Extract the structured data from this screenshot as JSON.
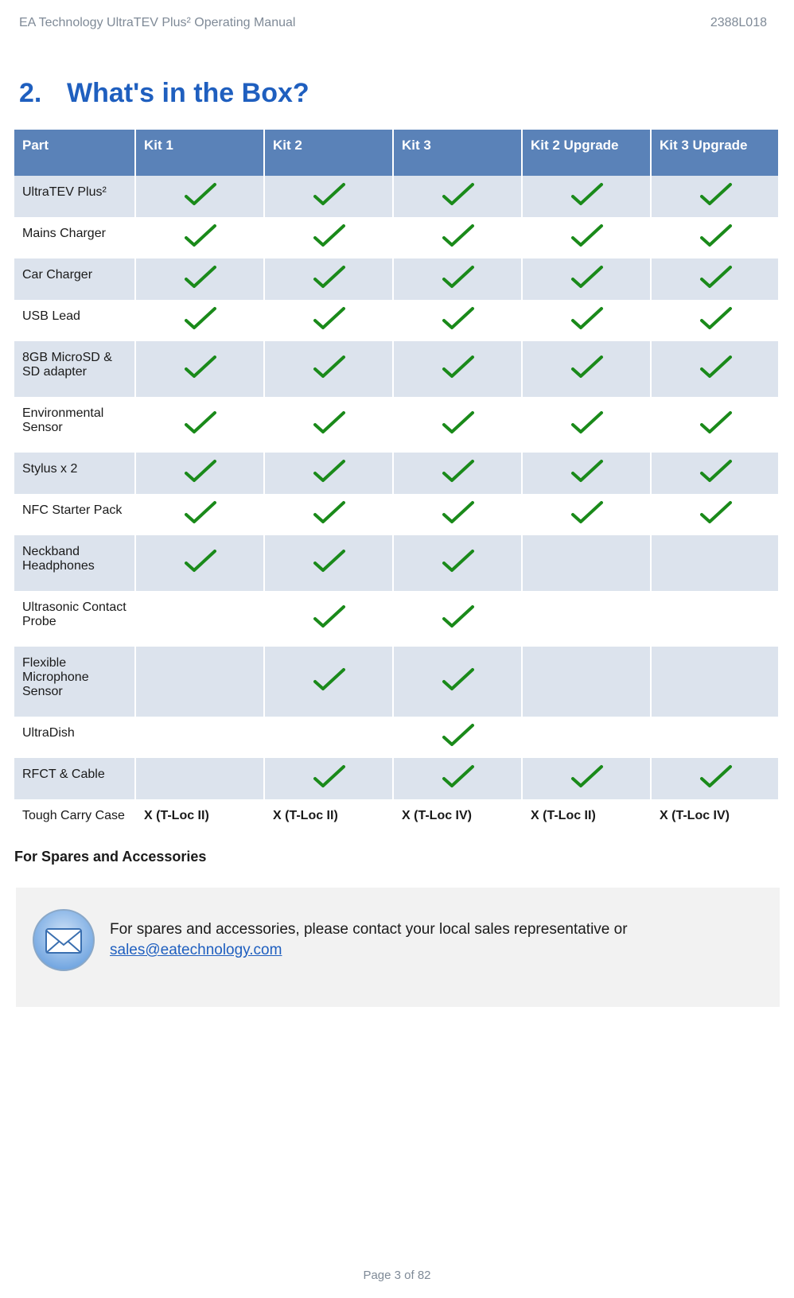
{
  "header": {
    "left": "EA Technology UltraTEV Plus² Operating Manual",
    "right": "2388L018"
  },
  "section": {
    "number": "2.",
    "title": "What's in the Box?"
  },
  "table": {
    "columns": [
      "Part",
      "Kit 1",
      "Kit 2",
      "Kit 3",
      "Kit 2 Upgrade",
      "Kit 3 Upgrade"
    ],
    "check_color": "#1a8a1a",
    "header_bg": "#5a82b8",
    "row_odd_bg": "#dce3ed",
    "row_even_bg": "#ffffff",
    "rows": [
      {
        "part": "UltraTEV Plus²",
        "cells": [
          "check",
          "check",
          "check",
          "check",
          "check"
        ]
      },
      {
        "part": "Mains Charger",
        "cells": [
          "check",
          "check",
          "check",
          "check",
          "check"
        ]
      },
      {
        "part": "Car Charger",
        "cells": [
          "check",
          "check",
          "check",
          "check",
          "check"
        ]
      },
      {
        "part": "USB Lead",
        "cells": [
          "check",
          "check",
          "check",
          "check",
          "check"
        ]
      },
      {
        "part": "8GB MicroSD & SD adapter",
        "cells": [
          "check",
          "check",
          "check",
          "check",
          "check"
        ]
      },
      {
        "part": "Environmental Sensor",
        "cells": [
          "check",
          "check",
          "check",
          "check",
          "check"
        ]
      },
      {
        "part": "Stylus x 2",
        "cells": [
          "check",
          "check",
          "check",
          "check",
          "check"
        ]
      },
      {
        "part": "NFC Starter Pack",
        "cells": [
          "check",
          "check",
          "check",
          "check",
          "check"
        ]
      },
      {
        "part": "Neckband Headphones",
        "cells": [
          "check",
          "check",
          "check",
          "",
          ""
        ]
      },
      {
        "part": "Ultrasonic Contact Probe",
        "cells": [
          "",
          "check",
          "check",
          "",
          ""
        ]
      },
      {
        "part": "Flexible Microphone Sensor",
        "cells": [
          "",
          "check",
          "check",
          "",
          ""
        ]
      },
      {
        "part": "UltraDish",
        "cells": [
          "",
          "",
          "check",
          "",
          ""
        ]
      },
      {
        "part": "RFCT & Cable",
        "cells": [
          "",
          "check",
          "check",
          "check",
          "check"
        ]
      },
      {
        "part": "Tough Carry Case",
        "cells": [
          "X (T-Loc II)",
          "X (T-Loc II)",
          "X (T-Loc IV)",
          "X (T-Loc II)",
          "X (T-Loc IV)"
        ],
        "text_row": true
      }
    ]
  },
  "spares": {
    "heading": "For Spares and Accessories",
    "note_prefix": "For spares and accessories, please contact your local sales representative or ",
    "email": "sales@eatechnology.com"
  },
  "footer": {
    "text": "Page 3 of 82"
  },
  "icons": {
    "mail_outer": "#6fa4e0",
    "mail_inner": "#ffffff",
    "mail_stroke": "#3a6fb0"
  }
}
